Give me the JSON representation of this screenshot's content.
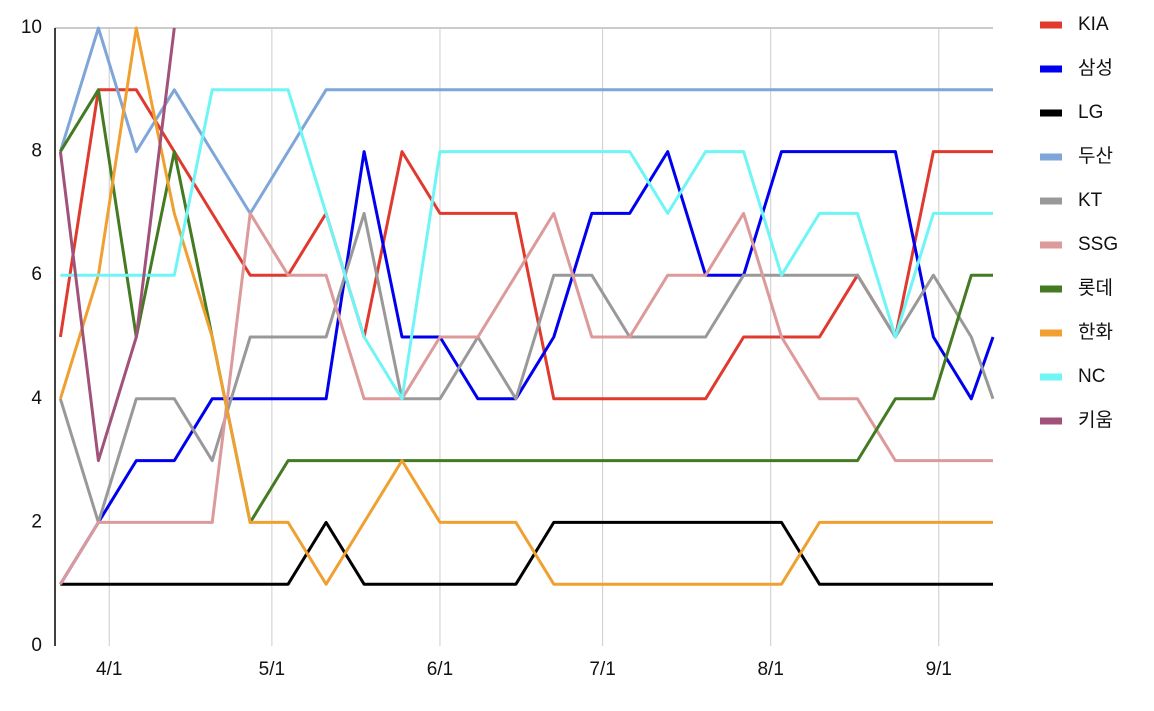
{
  "chart_data": {
    "type": "line",
    "x": [
      "3/23",
      "3/30",
      "4/6",
      "4/13",
      "4/20",
      "4/27",
      "5/4",
      "5/11",
      "5/18",
      "5/25",
      "6/1",
      "6/8",
      "6/15",
      "6/22",
      "6/29",
      "7/6",
      "7/13",
      "7/20",
      "7/27",
      "8/3",
      "8/10",
      "8/17",
      "8/24",
      "8/31",
      "9/7",
      "9/11"
    ],
    "xlim": [
      "3/22",
      "9/11"
    ],
    "xticks": [
      "4/1",
      "5/1",
      "6/1",
      "7/1",
      "8/1",
      "9/1"
    ],
    "ylim": [
      0,
      10
    ],
    "yticks": [
      0,
      2,
      4,
      6,
      8,
      10
    ],
    "grid": "x",
    "legend": "right",
    "series": [
      {
        "name": "KIA",
        "color": "#e03a2f",
        "values": [
          5,
          9,
          9,
          8,
          7,
          6,
          6,
          7,
          5,
          8,
          7,
          7,
          7,
          4,
          4,
          4,
          4,
          4,
          5,
          5,
          5,
          6,
          5,
          8,
          8,
          8
        ]
      },
      {
        "name": "삼성",
        "color": "#0000ee",
        "values": [
          1,
          2,
          3,
          3,
          4,
          4,
          4,
          4,
          8,
          5,
          5,
          4,
          4,
          5,
          7,
          7,
          8,
          6,
          6,
          8,
          8,
          8,
          8,
          5,
          4,
          5
        ]
      },
      {
        "name": "LG",
        "color": "#000000",
        "values": [
          1,
          1,
          1,
          1,
          1,
          1,
          1,
          2,
          1,
          1,
          1,
          1,
          1,
          2,
          2,
          2,
          2,
          2,
          2,
          2,
          1,
          1,
          1,
          1,
          1,
          1
        ]
      },
      {
        "name": "두산",
        "color": "#7ea6d8",
        "values": [
          8,
          10,
          8,
          9,
          8,
          7,
          8,
          9,
          9,
          9,
          9,
          9,
          9,
          9,
          9,
          9,
          9,
          9,
          9,
          9,
          9,
          9,
          9,
          9,
          9,
          9
        ]
      },
      {
        "name": "KT",
        "color": "#999999",
        "values": [
          4,
          2,
          4,
          4,
          3,
          5,
          5,
          5,
          7,
          4,
          4,
          5,
          4,
          6,
          6,
          5,
          5,
          5,
          6,
          6,
          6,
          6,
          5,
          6,
          5,
          4
        ]
      },
      {
        "name": "SSG",
        "color": "#dd9a9a",
        "values": [
          1,
          2,
          2,
          2,
          2,
          7,
          6,
          6,
          4,
          4,
          5,
          5,
          6,
          7,
          5,
          5,
          6,
          6,
          7,
          5,
          4,
          4,
          3,
          3,
          3,
          3
        ]
      },
      {
        "name": "롯데",
        "color": "#447a22",
        "values": [
          8,
          9,
          5,
          8,
          5,
          2,
          3,
          3,
          3,
          3,
          3,
          3,
          3,
          3,
          3,
          3,
          3,
          3,
          3,
          3,
          3,
          3,
          4,
          4,
          6,
          6
        ]
      },
      {
        "name": "한화",
        "color": "#f0a030",
        "values": [
          4,
          6,
          10,
          7,
          5,
          2,
          2,
          1,
          2,
          3,
          2,
          2,
          2,
          1,
          1,
          1,
          1,
          1,
          1,
          1,
          2,
          2,
          2,
          2,
          2,
          2
        ]
      },
      {
        "name": "NC",
        "color": "#6ff5f5",
        "values": [
          6,
          6,
          6,
          6,
          9,
          9,
          9,
          7,
          5,
          4,
          8,
          8,
          8,
          8,
          8,
          8,
          7,
          8,
          8,
          6,
          7,
          7,
          5,
          7,
          7,
          7
        ]
      },
      {
        "name": "키움",
        "color": "#a0527a",
        "values": [
          8,
          3,
          5,
          10,
          null,
          null,
          null,
          null,
          null,
          null,
          null,
          null,
          null,
          null,
          null,
          null,
          null,
          null,
          null,
          null,
          null,
          null,
          null,
          null,
          null,
          null
        ]
      }
    ]
  }
}
